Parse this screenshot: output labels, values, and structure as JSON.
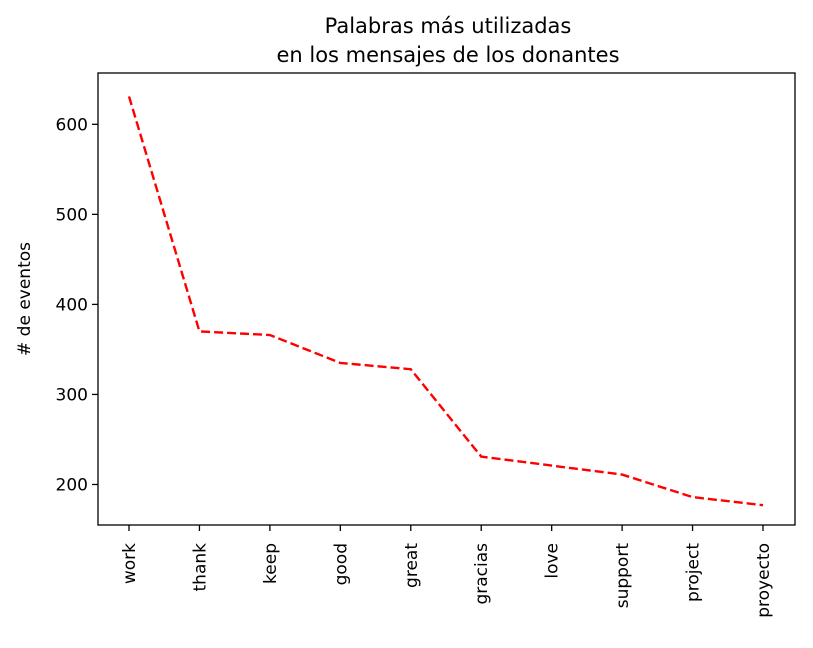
{
  "chart_data": {
    "type": "line",
    "title_line1": "Palabras más utilizadas",
    "title_line2": "en los mensajes de los donantes",
    "xlabel": "",
    "ylabel": "# de eventos",
    "categories": [
      "work",
      "thank",
      "keep",
      "good",
      "great",
      "gracias",
      "love",
      "support",
      "project",
      "proyecto"
    ],
    "series": [
      {
        "values": [
          631,
          370,
          366,
          335,
          328,
          231,
          221,
          211,
          186,
          177
        ],
        "color": "#ff0000",
        "line_style": "dashed"
      }
    ],
    "yticks": [
      200,
      300,
      400,
      500,
      600
    ],
    "ylim": [
      155,
      657
    ],
    "grid": false,
    "legend": "none"
  }
}
